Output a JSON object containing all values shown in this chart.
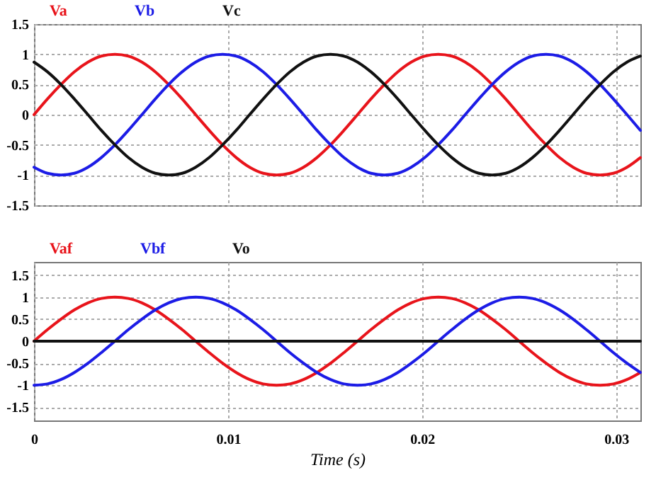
{
  "chart_data": [
    {
      "type": "line",
      "x": [
        0,
        0.00069,
        0.00139,
        0.00208,
        0.00278,
        0.00347,
        0.00417,
        0.00486,
        0.00556,
        0.00625,
        0.00694,
        0.00764,
        0.00833,
        0.00903,
        0.00972,
        0.01042,
        0.01111,
        0.01181,
        0.0125,
        0.01319,
        0.01389,
        0.01458,
        0.01528,
        0.01597,
        0.01667,
        0.01736,
        0.01806,
        0.01875,
        0.01944,
        0.02014,
        0.02083,
        0.02153,
        0.02222,
        0.02292,
        0.02361,
        0.02431,
        0.025,
        0.02569,
        0.02639,
        0.02708,
        0.02778,
        0.02847,
        0.02917,
        0.02986,
        0.03056,
        0.03125
      ],
      "series": [
        {
          "name": "Va",
          "color": "#e8141b",
          "values": [
            0,
            0.26,
            0.5,
            0.71,
            0.87,
            0.97,
            1,
            0.97,
            0.87,
            0.71,
            0.5,
            0.26,
            0,
            -0.26,
            -0.5,
            -0.71,
            -0.87,
            -0.97,
            -1,
            -0.97,
            -0.87,
            -0.71,
            -0.5,
            -0.26,
            0,
            0.26,
            0.5,
            0.71,
            0.87,
            0.97,
            1,
            0.97,
            0.87,
            0.71,
            0.5,
            0.26,
            0,
            -0.26,
            -0.5,
            -0.71,
            -0.87,
            -0.97,
            -1,
            -0.97,
            -0.87,
            -0.71
          ]
        },
        {
          "name": "Vb",
          "color": "#1c1ce6",
          "values": [
            -0.87,
            -0.97,
            -1,
            -0.97,
            -0.87,
            -0.71,
            -0.5,
            -0.26,
            0,
            0.26,
            0.5,
            0.71,
            0.87,
            0.97,
            1,
            0.97,
            0.87,
            0.71,
            0.5,
            0.26,
            0,
            -0.26,
            -0.5,
            -0.71,
            -0.87,
            -0.97,
            -1,
            -0.97,
            -0.87,
            -0.71,
            -0.5,
            -0.26,
            0,
            0.26,
            0.5,
            0.71,
            0.87,
            0.97,
            1,
            0.97,
            0.87,
            0.71,
            0.5,
            0.26,
            0,
            -0.26
          ]
        },
        {
          "name": "Vc",
          "color": "#111111",
          "values": [
            0.87,
            0.71,
            0.5,
            0.26,
            0,
            -0.26,
            -0.5,
            -0.71,
            -0.87,
            -0.97,
            -1,
            -0.97,
            -0.87,
            -0.71,
            -0.5,
            -0.26,
            0,
            0.26,
            0.5,
            0.71,
            0.87,
            0.97,
            1,
            0.97,
            0.87,
            0.71,
            0.5,
            0.26,
            0,
            -0.26,
            -0.5,
            -0.71,
            -0.87,
            -0.97,
            -1,
            -0.97,
            -0.87,
            -0.71,
            -0.5,
            -0.26,
            0,
            0.26,
            0.5,
            0.71,
            0.87,
            0.97
          ]
        }
      ],
      "xlim": [
        0,
        0.03125
      ],
      "xticks": [
        0,
        0.01,
        0.02,
        0.03
      ],
      "ylim": [
        -1.5,
        1.5
      ],
      "yticks": [
        -1.5,
        -1,
        -0.5,
        0,
        0.5,
        1,
        1.5
      ],
      "grid": true,
      "legend": "top left",
      "tick_labels": "y"
    },
    {
      "type": "line",
      "xlabel": "Time (s)",
      "x": [
        0,
        0.00069,
        0.00139,
        0.00208,
        0.00278,
        0.00347,
        0.00417,
        0.00486,
        0.00556,
        0.00625,
        0.00694,
        0.00764,
        0.00833,
        0.00903,
        0.00972,
        0.01042,
        0.01111,
        0.01181,
        0.0125,
        0.01319,
        0.01389,
        0.01458,
        0.01528,
        0.01597,
        0.01667,
        0.01736,
        0.01806,
        0.01875,
        0.01944,
        0.02014,
        0.02083,
        0.02153,
        0.02222,
        0.02292,
        0.02361,
        0.02431,
        0.025,
        0.02569,
        0.02639,
        0.02708,
        0.02778,
        0.02847,
        0.02917,
        0.02986,
        0.03056,
        0.03125
      ],
      "series": [
        {
          "name": "Vaf",
          "color": "#e8141b",
          "values": [
            0,
            0.26,
            0.5,
            0.71,
            0.87,
            0.97,
            1,
            0.97,
            0.87,
            0.71,
            0.5,
            0.26,
            0,
            -0.26,
            -0.5,
            -0.71,
            -0.87,
            -0.97,
            -1,
            -0.97,
            -0.87,
            -0.71,
            -0.5,
            -0.26,
            0,
            0.26,
            0.5,
            0.71,
            0.87,
            0.97,
            1,
            0.97,
            0.87,
            0.71,
            0.5,
            0.26,
            0,
            -0.26,
            -0.5,
            -0.71,
            -0.87,
            -0.97,
            -1,
            -0.97,
            -0.87,
            -0.71
          ]
        },
        {
          "name": "Vbf",
          "color": "#1c1ce6",
          "values": [
            -1,
            -0.97,
            -0.87,
            -0.71,
            -0.5,
            -0.26,
            0,
            0.26,
            0.5,
            0.71,
            0.87,
            0.97,
            1,
            0.97,
            0.87,
            0.71,
            0.5,
            0.26,
            0,
            -0.26,
            -0.5,
            -0.71,
            -0.87,
            -0.97,
            -1,
            -0.97,
            -0.87,
            -0.71,
            -0.5,
            -0.26,
            0,
            0.26,
            0.5,
            0.71,
            0.87,
            0.97,
            1,
            0.97,
            0.87,
            0.71,
            0.5,
            0.26,
            0,
            -0.26,
            -0.5,
            -0.71
          ]
        },
        {
          "name": "Vo",
          "color": "#111111",
          "values": [
            0,
            0,
            0,
            0,
            0,
            0,
            0,
            0,
            0,
            0,
            0,
            0,
            0,
            0,
            0,
            0,
            0,
            0,
            0,
            0,
            0,
            0,
            0,
            0,
            0,
            0,
            0,
            0,
            0,
            0,
            0,
            0,
            0,
            0,
            0,
            0,
            0,
            0,
            0,
            0,
            0,
            0,
            0,
            0,
            0,
            0
          ]
        }
      ],
      "xlim": [
        0,
        0.03125
      ],
      "xticks": [
        0,
        0.01,
        0.02,
        0.03
      ],
      "ylim": [
        -1.8,
        1.8
      ],
      "yticks": [
        -1.5,
        -1,
        -0.5,
        0,
        0.5,
        1,
        1.5
      ],
      "grid": true,
      "legend": "top left"
    }
  ]
}
